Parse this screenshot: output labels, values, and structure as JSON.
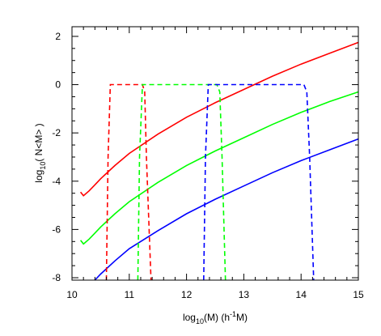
{
  "chart_data": {
    "type": "line",
    "title": "",
    "xlabel": "log",
    "xlabel_parts": {
      "base": "log",
      "base_subscript": "10",
      "argument": "(M) (h",
      "superscript": "-1",
      "unit": "M)"
    },
    "ylabel": "log",
    "ylabel_parts": {
      "base": "log",
      "base_subscript": "10",
      "argument": "( N<M> )"
    },
    "xlim": [
      10,
      15
    ],
    "ylim": [
      -8.1,
      2.4
    ],
    "x_ticks": [
      10,
      11,
      12,
      13,
      14,
      15
    ],
    "x_tick_labels": [
      "10",
      "11",
      "12",
      "13",
      "14",
      "15"
    ],
    "y_ticks": [
      -8,
      -6,
      -4,
      -2,
      0,
      2
    ],
    "y_tick_labels": [
      "-8",
      "-6",
      "-4",
      "-2",
      "0",
      "2"
    ],
    "grid": false,
    "legend": "none",
    "series": [
      {
        "color": "#ff0000",
        "style": "solid",
        "x": [
          10.15,
          10.2,
          10.3,
          10.4,
          10.5,
          10.75,
          11.0,
          11.5,
          12.0,
          12.5,
          13.0,
          13.5,
          14.0,
          14.5,
          15.0
        ],
        "y": [
          -4.45,
          -4.6,
          -4.4,
          -4.15,
          -3.9,
          -3.35,
          -2.85,
          -2.05,
          -1.35,
          -0.75,
          -0.2,
          0.35,
          0.85,
          1.3,
          1.75
        ]
      },
      {
        "color": "#00ff00",
        "style": "solid",
        "x": [
          10.15,
          10.2,
          10.3,
          10.4,
          10.5,
          10.75,
          11.0,
          11.5,
          12.0,
          12.5,
          13.0,
          13.5,
          14.0,
          14.5,
          15.0
        ],
        "y": [
          -6.45,
          -6.6,
          -6.4,
          -6.15,
          -5.9,
          -5.35,
          -4.85,
          -4.05,
          -3.35,
          -2.75,
          -2.2,
          -1.65,
          -1.15,
          -0.7,
          -0.3
        ]
      },
      {
        "color": "#0000ff",
        "style": "solid",
        "x": [
          10.4,
          10.5,
          10.75,
          11.0,
          11.5,
          12.0,
          12.5,
          13.0,
          13.5,
          14.0,
          14.5,
          15.0
        ],
        "y": [
          -8.1,
          -7.85,
          -7.3,
          -6.8,
          -6.05,
          -5.35,
          -4.75,
          -4.2,
          -3.65,
          -3.15,
          -2.7,
          -2.25
        ]
      },
      {
        "color": "#ff0000",
        "style": "dashed",
        "x": [
          10.6,
          10.63,
          10.67,
          11.23,
          11.27,
          11.3,
          11.38
        ],
        "y": [
          -8.1,
          -3.0,
          0.0,
          0.0,
          -0.3,
          -3.0,
          -8.1
        ]
      },
      {
        "color": "#00ff00",
        "style": "dashed",
        "x": [
          11.15,
          11.18,
          11.23,
          12.53,
          12.58,
          12.62,
          12.68
        ],
        "y": [
          -8.1,
          -3.0,
          0.0,
          0.0,
          -0.3,
          -3.0,
          -8.1
        ]
      },
      {
        "color": "#0000ff",
        "style": "dashed",
        "x": [
          12.3,
          12.33,
          12.38,
          14.05,
          14.1,
          14.15,
          14.22
        ],
        "y": [
          -8.1,
          -3.0,
          0.0,
          0.0,
          -0.3,
          -3.0,
          -8.1
        ]
      }
    ]
  }
}
